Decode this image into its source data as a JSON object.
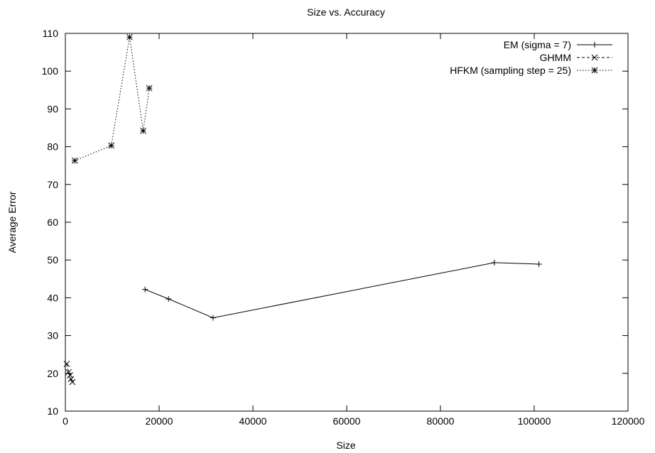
{
  "chart_data": {
    "type": "line",
    "title": "Size vs. Accuracy",
    "xlabel": "Size",
    "ylabel": "Average Error",
    "xlim": [
      0,
      120000
    ],
    "ylim": [
      10,
      110
    ],
    "xticks": [
      0,
      20000,
      40000,
      60000,
      80000,
      100000,
      120000
    ],
    "yticks": [
      10,
      20,
      30,
      40,
      50,
      60,
      70,
      80,
      90,
      100,
      110
    ],
    "grid": false,
    "legend_position": "top-right",
    "series": [
      {
        "name": "EM (sigma = 7)",
        "line_style": "solid",
        "marker": "plus",
        "x": [
          17000,
          22000,
          31500,
          91500,
          101000
        ],
        "y": [
          42.2,
          39.7,
          34.7,
          49.3,
          48.9
        ]
      },
      {
        "name": "GHMM",
        "line_style": "dashed",
        "marker": "cross",
        "x": [
          300,
          700,
          1000,
          1200,
          1500
        ],
        "y": [
          22.5,
          20.3,
          19.5,
          18.5,
          17.7
        ]
      },
      {
        "name": "HFKM (sampling step = 25)",
        "line_style": "dotted",
        "marker": "star",
        "x": [
          2000,
          9800,
          13700,
          16600,
          17900
        ],
        "y": [
          76.3,
          80.3,
          109.0,
          84.2,
          95.5
        ]
      }
    ]
  }
}
